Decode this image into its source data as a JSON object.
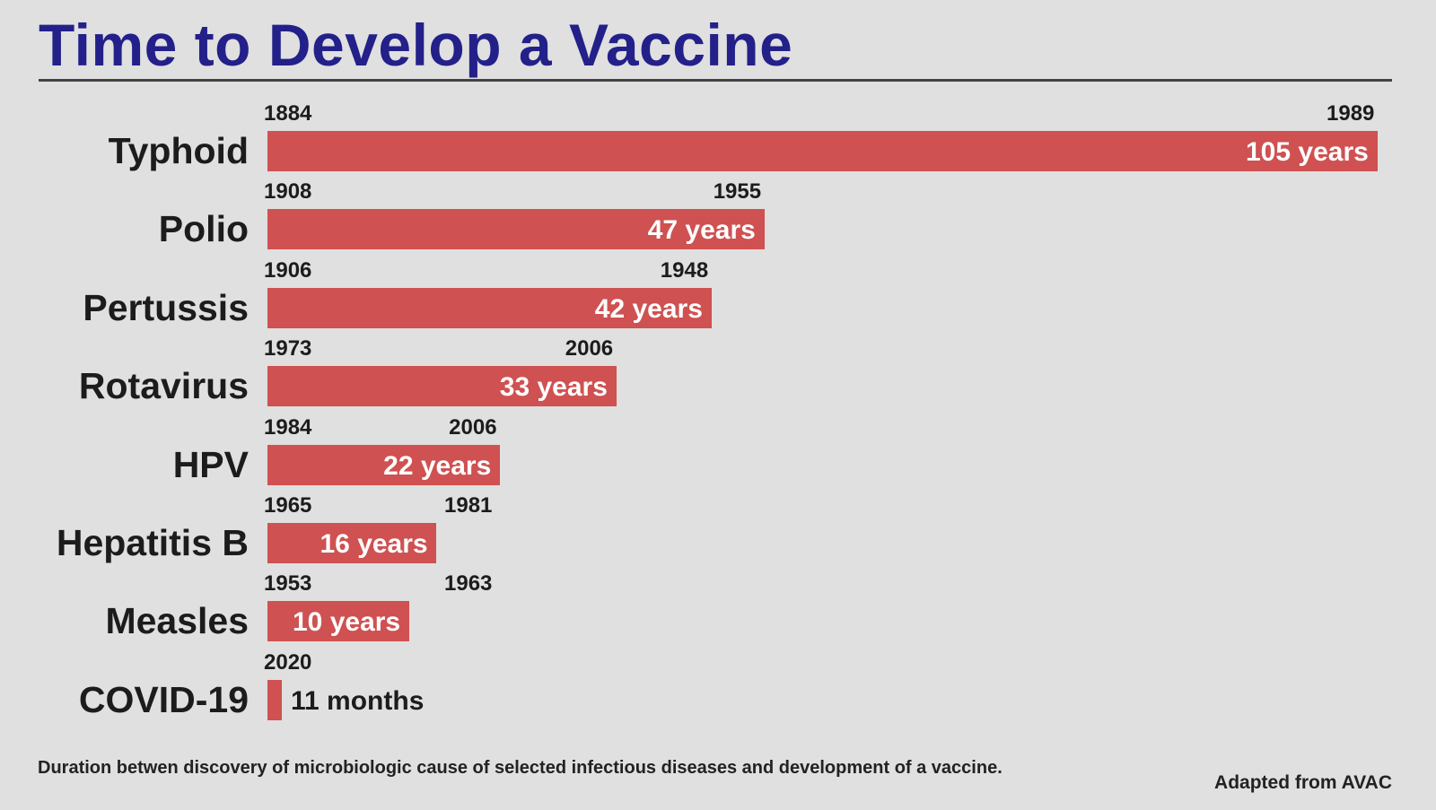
{
  "chart_data": {
    "type": "bar",
    "orientation": "horizontal",
    "title": "Time to Develop a Vaccine",
    "caption": "Duration betwen discovery of microbiologic cause of selected infectious diseases and development of a vaccine.",
    "source": "Adapted from AVAC",
    "bar_color": "#cf5151",
    "title_color": "#23208a",
    "grid": false,
    "categories": [
      "Typhoid",
      "Polio",
      "Pertussis",
      "Rotavirus",
      "HPV",
      "Hepatitis B",
      "Measles",
      "COVID-19"
    ],
    "items": [
      {
        "name": "Typhoid",
        "start": "1884",
        "end": "1989",
        "years": 105,
        "label": "105 years"
      },
      {
        "name": "Polio",
        "start": "1908",
        "end": "1955",
        "years": 47,
        "label": "47 years"
      },
      {
        "name": "Pertussis",
        "start": "1906",
        "end": "1948",
        "years": 42,
        "label": "42 years"
      },
      {
        "name": "Rotavirus",
        "start": "1973",
        "end": "2006",
        "years": 33,
        "label": "33 years"
      },
      {
        "name": "HPV",
        "start": "1984",
        "end": "2006",
        "years": 22,
        "label": "22 years"
      },
      {
        "name": "Hepatitis B",
        "start": "1965",
        "end": "1981",
        "years": 16,
        "label": "16 years"
      },
      {
        "name": "Measles",
        "start": "1953",
        "end": "1963",
        "years": 10,
        "label": "10 years"
      },
      {
        "name": "COVID-19",
        "start": "2020",
        "end": "",
        "years": 0.917,
        "label": "11 months"
      }
    ]
  }
}
